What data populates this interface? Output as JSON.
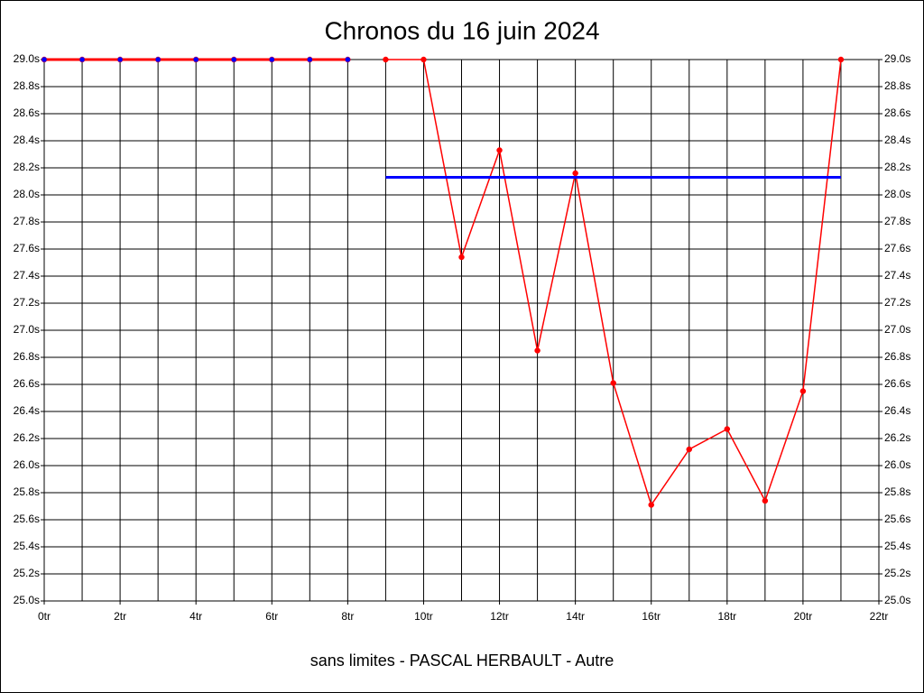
{
  "chart_data": {
    "type": "line",
    "title": "Chronos du 16 juin 2024",
    "xlabel": "sans limites - PASCAL HERBAULT - Autre",
    "xlim": [
      0,
      22
    ],
    "xticks": [
      {
        "value": 0,
        "label": "0tr"
      },
      {
        "value": 2,
        "label": "2tr"
      },
      {
        "value": 4,
        "label": "4tr"
      },
      {
        "value": 6,
        "label": "6tr"
      },
      {
        "value": 8,
        "label": "8tr"
      },
      {
        "value": 10,
        "label": "10tr"
      },
      {
        "value": 12,
        "label": "12tr"
      },
      {
        "value": 14,
        "label": "14tr"
      },
      {
        "value": 16,
        "label": "16tr"
      },
      {
        "value": 18,
        "label": "18tr"
      },
      {
        "value": 20,
        "label": "20tr"
      },
      {
        "value": 22,
        "label": "22tr"
      }
    ],
    "minor_xticks": [
      1,
      3,
      5,
      7,
      9,
      11,
      13,
      15,
      17,
      19,
      21
    ],
    "ylim": [
      25.0,
      29.0
    ],
    "yticks": [
      {
        "value": 25.0,
        "label": "25.0s"
      },
      {
        "value": 25.2,
        "label": "25.2s"
      },
      {
        "value": 25.4,
        "label": "25.4s"
      },
      {
        "value": 25.6,
        "label": "25.6s"
      },
      {
        "value": 25.8,
        "label": "25.8s"
      },
      {
        "value": 26.0,
        "label": "26.0s"
      },
      {
        "value": 26.2,
        "label": "26.2s"
      },
      {
        "value": 26.4,
        "label": "26.4s"
      },
      {
        "value": 26.6,
        "label": "26.6s"
      },
      {
        "value": 26.8,
        "label": "26.8s"
      },
      {
        "value": 27.0,
        "label": "27.0s"
      },
      {
        "value": 27.2,
        "label": "27.2s"
      },
      {
        "value": 27.4,
        "label": "27.4s"
      },
      {
        "value": 27.6,
        "label": "27.6s"
      },
      {
        "value": 27.8,
        "label": "27.8s"
      },
      {
        "value": 28.0,
        "label": "28.0s"
      },
      {
        "value": 28.2,
        "label": "28.2s"
      },
      {
        "value": 28.4,
        "label": "28.4s"
      },
      {
        "value": 28.6,
        "label": "28.6s"
      },
      {
        "value": 28.8,
        "label": "28.8s"
      },
      {
        "value": 29.0,
        "label": "29.0s"
      }
    ],
    "grid": true,
    "series": [
      {
        "color": "#ff0000",
        "marker_color": "#0000ff",
        "line_width": 3,
        "x": [
          0,
          1,
          2,
          3,
          4,
          5,
          6,
          7,
          8
        ],
        "values": [
          29.0,
          29.0,
          29.0,
          29.0,
          29.0,
          29.0,
          29.0,
          29.0,
          29.0
        ]
      },
      {
        "color": "#ff0000",
        "marker_color": "#ff0000",
        "line_width": 1.5,
        "x": [
          9,
          10,
          11,
          12,
          13,
          14,
          15,
          16,
          17,
          18,
          19,
          20,
          21
        ],
        "values": [
          29.0,
          29.0,
          27.54,
          28.33,
          26.85,
          28.16,
          26.61,
          25.71,
          26.12,
          26.27,
          25.74,
          26.55,
          29.0
        ]
      },
      {
        "color": "#0000ff",
        "line_width": 3,
        "x": [
          9,
          21
        ],
        "values": [
          28.13,
          28.13
        ]
      }
    ]
  }
}
